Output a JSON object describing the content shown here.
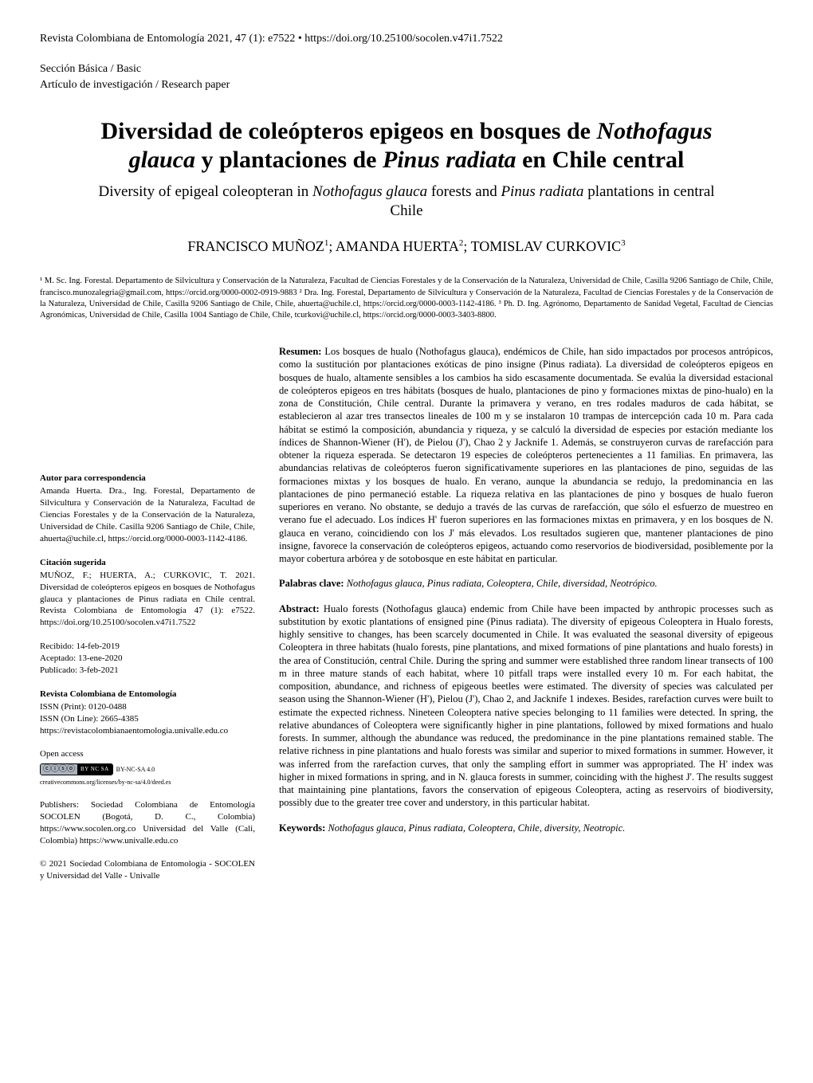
{
  "header": {
    "journal_line": "Revista Colombiana de Entomología 2021, 47 (1): e7522 • https://doi.org/10.25100/socolen.v47i1.7522",
    "section": "Sección Básica / Basic",
    "article_type": "Artículo de investigación / Research paper"
  },
  "title": {
    "line1_pre": "Diversidad de coleópteros epigeos en bosques de ",
    "line1_ital": "Nothofagus glauca",
    "line1_mid": " y plantaciones de ",
    "line1_ital2": "Pinus radiata",
    "line2": " en Chile central"
  },
  "subtitle": {
    "pre": "Diversity of epigeal coleopteran in ",
    "ital1": "Nothofagus glauca",
    "mid": " forests and ",
    "ital2": "Pinus radiata",
    "post": " plantations in central Chile"
  },
  "authors": {
    "a1": "FRANCISCO MUÑOZ",
    "a2": "AMANDA HUERTA",
    "a3": "TOMISLAV CURKOVIC"
  },
  "affiliations": {
    "text": "¹ M. Sc. Ing. Forestal. Departamento de Silvicultura y Conservación de la Naturaleza, Facultad de Ciencias Forestales y de la Conservación de la Naturaleza, Universidad de Chile, Casilla 9206 Santiago de Chile, Chile, francisco.munozalegria@gmail.com, https://orcid.org/0000-0002-0919-9883 ² Dra. Ing. Forestal, Departamento de Silvicultura y Conservación de la Naturaleza, Facultad de Ciencias Forestales y de la Conservación de la Naturaleza, Universidad de Chile, Casilla 9206 Santiago de Chile, Chile, ahuerta@uchile.cl, https://orcid.org/0000-0003-1142-4186. ³ Ph. D. Ing. Agrónomo, Departamento de Sanidad Vegetal, Facultad de Ciencias Agronómicas, Universidad de Chile, Casilla 1004 Santiago de Chile, Chile, tcurkovi@uchile.cl, https://orcid.org/0000-0003-3403-8800."
  },
  "left": {
    "correspondence": {
      "heading": "Autor para correspondencia",
      "text": "Amanda Huerta. Dra., Ing. Forestal, Departamento de Silvicultura y Conservación de la Naturaleza, Facultad de Ciencias Forestales y de la Conservación de la Naturaleza, Universidad de Chile. Casilla 9206 Santiago de Chile, Chile, ahuerta@uchile.cl, https://orcid.org/0000-0003-1142-4186."
    },
    "citation": {
      "heading": "Citación sugerida",
      "text": "MUÑOZ, F.; HUERTA, A.; CURKOVIC, T. 2021. Diversidad de coleópteros epigeos en bosques de Nothofagus glauca y plantaciones de Pinus radiata en Chile central. Revista Colombiana de Entomología 47 (1): e7522. https://doi.org/10.25100/socolen.v47i1.7522"
    },
    "dates": {
      "received": "Recibido: 14-feb-2019",
      "accepted": "Aceptado: 13-ene-2020",
      "published": "Publicado: 3-feb-2021"
    },
    "journal_info": {
      "heading": "Revista Colombiana de Entomología",
      "issn_print": "ISSN (Print): 0120-0488",
      "issn_online": "ISSN (On Line): 2665-4385",
      "url": "https://revistacolombianaentomologia.univalle.edu.co"
    },
    "open_access": {
      "label": "Open access",
      "cc_label": "BY-NC-SA 4.0",
      "cc_link": "creativecommons.org/licenses/by-nc-sa/4.0/deed.es",
      "cc_badge_text": "BY  NC  SA"
    },
    "publishers": {
      "text": "Publishers: Sociedad Colombiana de Entomología SOCOLEN (Bogotá, D. C., Colombia) https://www.socolen.org.co Universidad del Valle (Cali, Colombia) https://www.univalle.edu.co"
    },
    "copyright": {
      "text": "© 2021 Sociedad Colombiana de Entomología - SOCOLEN y Universidad del Valle - Univalle"
    }
  },
  "abstracts": {
    "resumen_label": "Resumen: ",
    "resumen_text": "Los bosques de hualo (Nothofagus glauca), endémicos de Chile, han sido impactados por procesos antrópicos, como la sustitución por plantaciones exóticas de pino insigne (Pinus radiata). La diversidad de coleópteros epigeos en bosques de hualo, altamente sensibles a los cambios ha sido escasamente documentada. Se evalúa la diversidad estacional de coleópteros epigeos en tres hábitats (bosques de hualo, plantaciones de pino y formaciones mixtas de pino-hualo) en la zona de Constitución, Chile central. Durante la primavera y verano, en tres rodales maduros de cada hábitat, se establecieron al azar tres transectos lineales de 100 m y se instalaron 10 trampas de intercepción cada 10 m. Para cada hábitat se estimó la composición, abundancia y riqueza, y se calculó la diversidad de especies por estación mediante los índices de Shannon-Wiener (H'), de Pielou (J'), Chao 2 y Jacknife 1. Además, se construyeron curvas de rarefacción para obtener la riqueza esperada. Se detectaron 19 especies de coleópteros pertenecientes a 11 familias. En primavera, las abundancias relativas de coleópteros fueron significativamente superiores en las plantaciones de pino, seguidas de las formaciones mixtas y los bosques de hualo. En verano, aunque la abundancia se redujo, la predominancia en las plantaciones de pino permaneció estable. La riqueza relativa en las plantaciones de pino y bosques de hualo fueron superiores en verano. No obstante, se dedujo a través de las curvas de rarefacción, que sólo el esfuerzo de muestreo en verano fue el adecuado. Los índices H' fueron superiores en las formaciones mixtas en primavera, y en los bosques de N. glauca en verano, coincidiendo con los J' más elevados. Los resultados sugieren que, mantener plantaciones de pino insigne, favorece la conservación de coleópteros epigeos, actuando como reservorios de biodiversidad, posiblemente por la mayor cobertura arbórea y de sotobosque en este hábitat en particular.",
    "palabras_label": "Palabras clave: ",
    "palabras_text": "Nothofagus glauca, Pinus radiata, Coleoptera, Chile, diversidad, Neotrópico.",
    "abstract_label": "Abstract: ",
    "abstract_text": "Hualo forests (Nothofagus glauca) endemic from Chile have been impacted by anthropic processes such as substitution by exotic plantations of ensigned pine (Pinus radiata). The diversity of epigeous Coleoptera in Hualo forests, highly sensitive to changes, has been scarcely documented in Chile. It was evaluated the seasonal diversity of epigeous Coleoptera in three habitats (hualo forests, pine plantations, and mixed formations of pine plantations and hualo forests) in the area of Constitución, central Chile. During the spring and summer were established three random linear transects of 100 m in three mature stands of each habitat, where 10 pitfall traps were installed every 10 m. For each habitat, the composition, abundance, and richness of epigeous beetles were estimated. The diversity of species was calculated per season using the Shannon-Wiener (H'), Pielou (J'), Chao 2, and Jacknife 1 indexes. Besides, rarefaction curves were built to estimate the expected richness. Nineteen Coleoptera native species belonging to 11 families were detected. In spring, the relative abundances of Coleoptera were significantly higher in pine plantations, followed by mixed formations and hualo forests. In summer, although the abundance was reduced, the predominance in the pine plantations remained stable. The relative richness in pine plantations and hualo forests was similar and superior to mixed formations in summer. However, it was inferred from the rarefaction curves, that only the sampling effort in summer was appropriated. The H' index was higher in mixed formations in spring, and in N. glauca forests in summer, coinciding with the highest J'. The results suggest that maintaining pine plantations, favors the conservation of epigeous Coleoptera, acting as reservoirs of biodiversity, possibly due to the greater tree cover and understory, in this particular habitat.",
    "keywords_label": "Keywords: ",
    "keywords_text": "Nothofagus glauca, Pinus radiata, Coleoptera, Chile, diversity, Neotropic."
  }
}
